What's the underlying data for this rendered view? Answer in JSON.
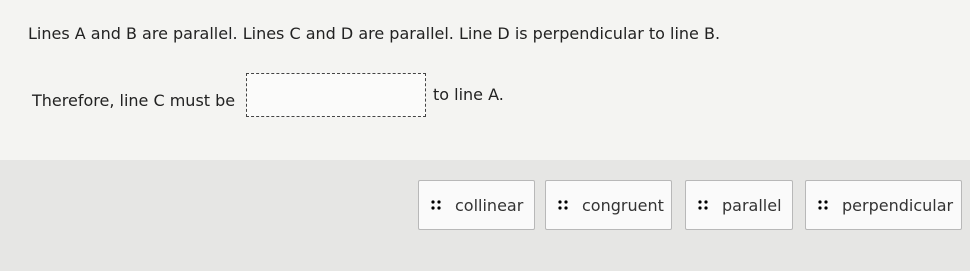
{
  "question": "Lines A and B are parallel. Lines C and D are parallel. Line D is perpendicular to line B.",
  "prompt_before": "Therefore, line C must be",
  "prompt_after": "to line A.",
  "options": [
    "collinear",
    "congruent",
    "parallel",
    "perpendicular"
  ]
}
